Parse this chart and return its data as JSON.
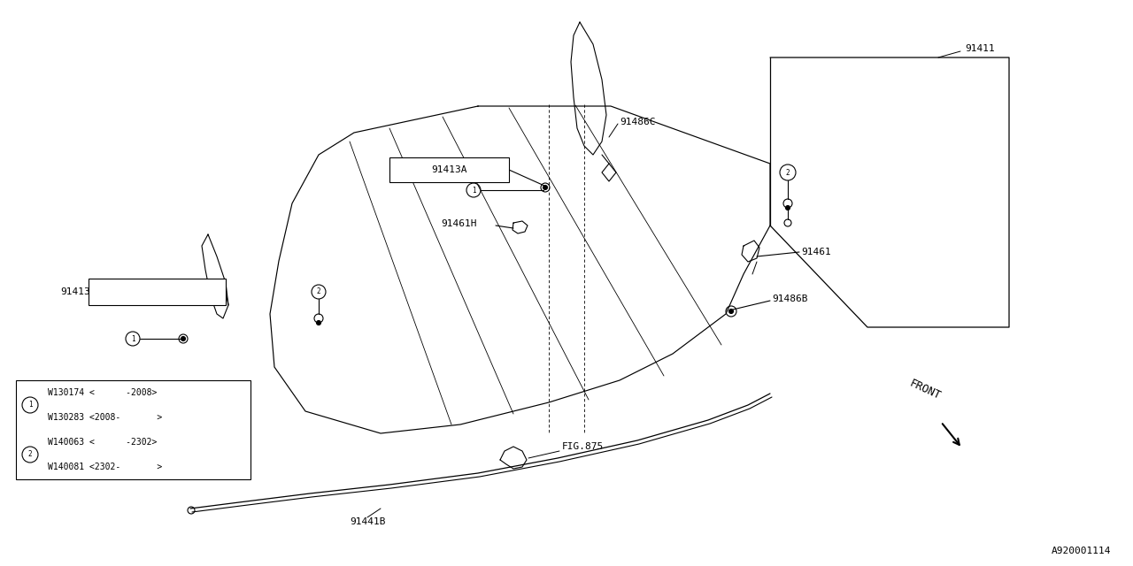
{
  "bg_color": "#ffffff",
  "fig_code": "A920001114",
  "legend_rows": [
    "W130174 <      -2008>",
    "W130283 <2008-       >",
    "W140063 <      -2302>",
    "W140081 <2302-       >"
  ]
}
